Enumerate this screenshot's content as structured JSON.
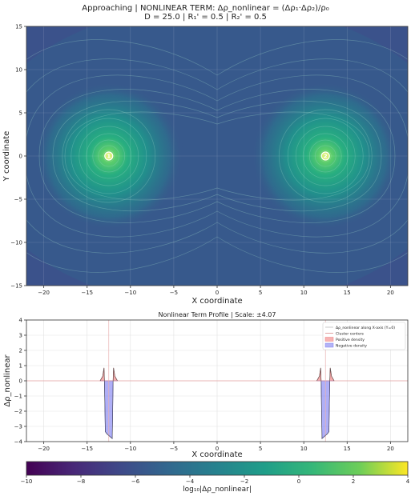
{
  "figure": {
    "title_line1": "Approaching | NONLINEAR TERM: Δρ_nonlinear = (Δρ₁·Δρ₂)/ρ₀",
    "title_line2": "D = 25.0 | R₁' = 0.5 | R₂' = 0.5"
  },
  "chart_data": [
    {
      "type": "heatmap",
      "xlabel": "X coordinate",
      "ylabel": "Y coordinate",
      "xlim": [
        -22,
        22
      ],
      "ylim": [
        -15,
        15
      ],
      "xticks": [
        -20,
        -15,
        -10,
        -5,
        0,
        5,
        10,
        15,
        20
      ],
      "yticks": [
        -15,
        -10,
        -5,
        0,
        5,
        10,
        15
      ],
      "grid": true,
      "colormap": "viridis",
      "color_range": [
        -10,
        4
      ],
      "cluster_markers": [
        {
          "label": "1",
          "x": -12.5,
          "y": 0
        },
        {
          "label": "2",
          "x": 12.5,
          "y": 0
        }
      ]
    },
    {
      "type": "line",
      "title": "Nonlinear Term Profile | Scale: ±4.07",
      "xlabel": "X coordinate",
      "ylabel": "Δρ_nonlinear",
      "xlim": [
        -22,
        22
      ],
      "ylim": [
        -4,
        4
      ],
      "xticks": [
        -20,
        -15,
        -10,
        -5,
        0,
        5,
        10,
        15,
        20
      ],
      "yticks": [
        -4,
        -3,
        -2,
        -1,
        0,
        1,
        2,
        3,
        4
      ],
      "grid": true,
      "legend": {
        "placement": "top-right",
        "entries": [
          {
            "label": "Δρ_nonlinear along X-axis (Y=0)",
            "color": "#c8c8c8"
          },
          {
            "label": "Cluster centers",
            "color": "#e0a0a0"
          },
          {
            "label": "Positive density",
            "color": "#f08080"
          },
          {
            "label": "Negative density",
            "color": "#8080f0"
          }
        ]
      },
      "cluster_centers": [
        -12.5,
        12.5
      ],
      "series": [
        {
          "x": [
            -13.5,
            -13.2,
            -13.05,
            -13.0,
            -12.9,
            -12.7,
            -12.5,
            -12.3,
            -12.1,
            -12.0,
            -11.95,
            -11.8,
            -11.5
          ],
          "y": [
            0.0,
            0.3,
            0.85,
            0.0,
            -3.35,
            -3.5,
            -3.6,
            -3.7,
            -3.8,
            0.0,
            0.85,
            0.3,
            0.0
          ]
        },
        {
          "x": [
            11.5,
            11.8,
            11.95,
            12.0,
            12.1,
            12.3,
            12.5,
            12.7,
            12.9,
            13.0,
            13.05,
            13.2,
            13.5
          ],
          "y": [
            0.0,
            0.3,
            0.85,
            0.0,
            -3.8,
            -3.7,
            -3.6,
            -3.5,
            -3.35,
            0.0,
            0.85,
            0.3,
            0.0
          ]
        }
      ]
    },
    {
      "type": "colorbar",
      "label": "log₁₀|Δρ_nonlinear|",
      "range": [
        -10,
        4
      ],
      "ticks": [
        -10,
        -8,
        -6,
        -4,
        -2,
        0,
        2,
        4
      ]
    }
  ]
}
